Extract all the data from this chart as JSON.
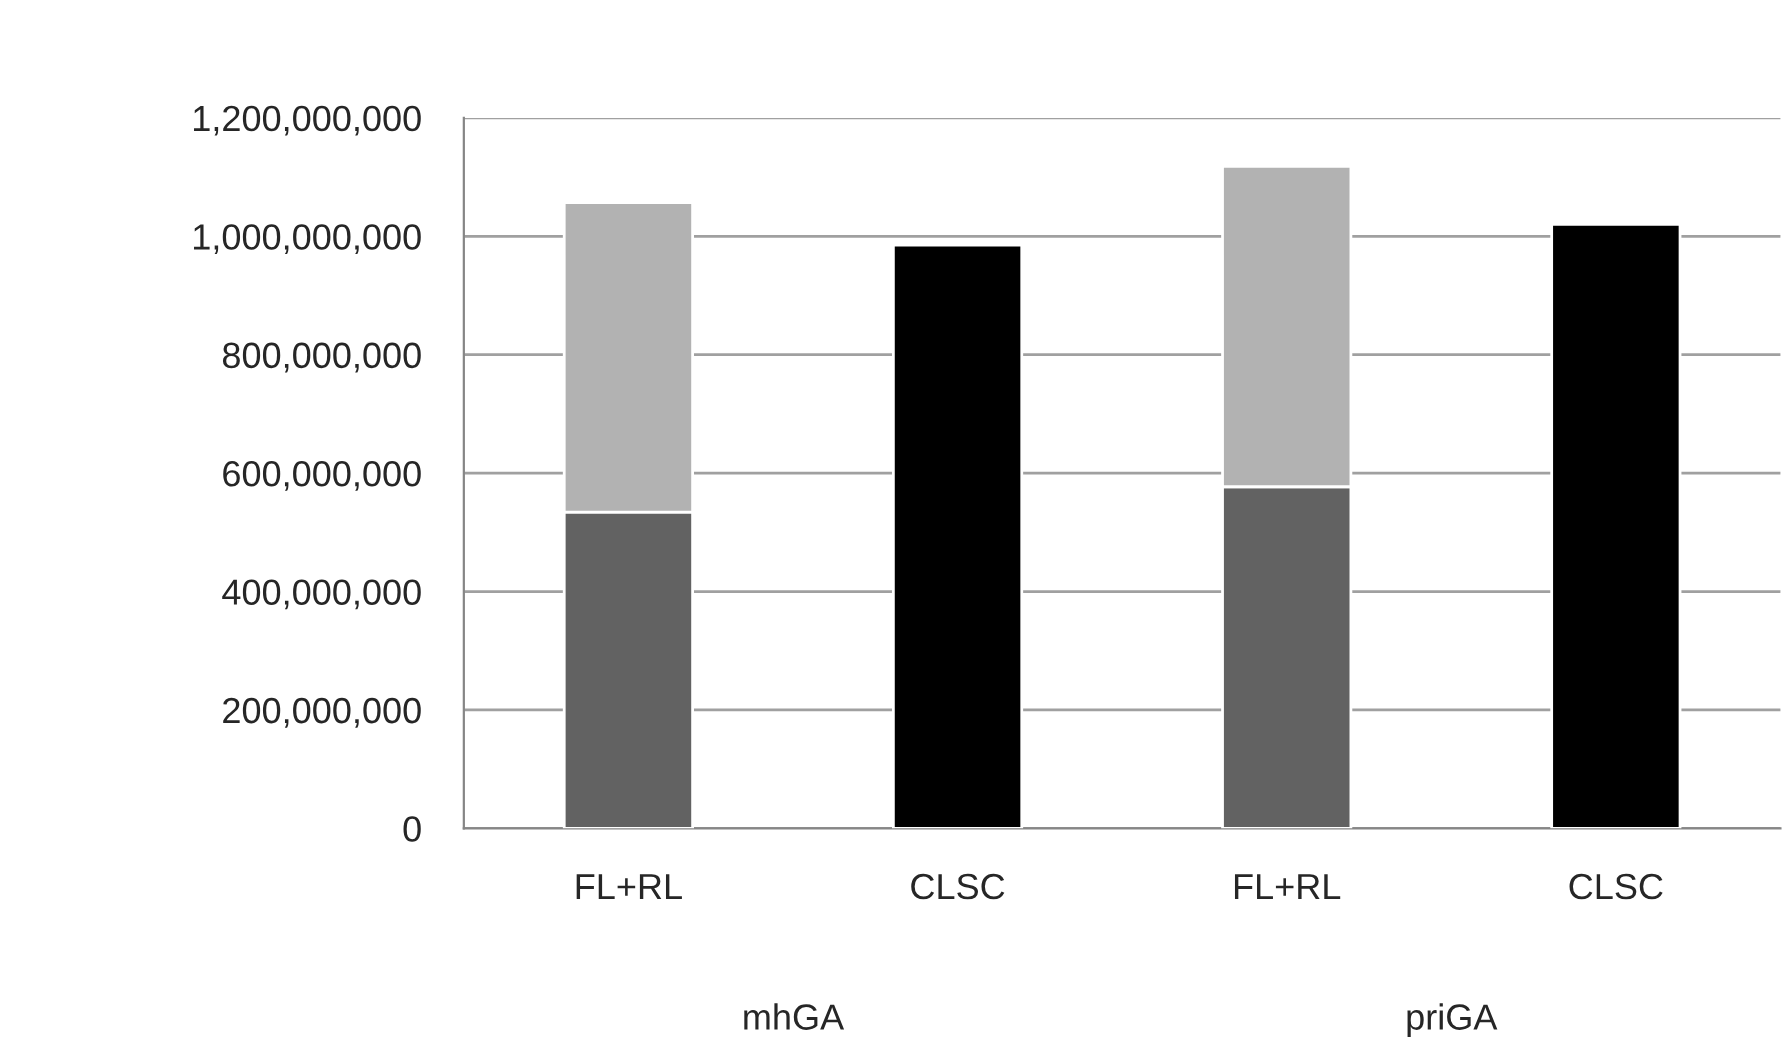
{
  "chart_data": {
    "type": "bar",
    "stacked": true,
    "categories": [
      "FL+RL",
      "CLSC",
      "FL+RL",
      "CLSC"
    ],
    "series": [
      {
        "color": "#626262",
        "values": [
          534000000,
          null,
          577000000,
          null
        ]
      },
      {
        "color": "#b2b2b2",
        "values": [
          523000000,
          null,
          541000000,
          null
        ]
      },
      {
        "color": "#000000",
        "values": [
          null,
          985000000,
          null,
          1020000000
        ]
      }
    ],
    "ylim": [
      0,
      1200000000
    ],
    "yticks": [
      {
        "value": 0,
        "label": "0"
      },
      {
        "value": 200000000,
        "label": "200,000,000"
      },
      {
        "value": 400000000,
        "label": "400,000,000"
      },
      {
        "value": 600000000,
        "label": "600,000,000"
      },
      {
        "value": 800000000,
        "label": "800,000,000"
      },
      {
        "value": 1000000000,
        "label": "1,000,000,000"
      },
      {
        "value": 1200000000,
        "label": "1,200,000,000"
      }
    ],
    "grid": "y",
    "annotations": [
      "mhGA",
      "priGA"
    ]
  }
}
